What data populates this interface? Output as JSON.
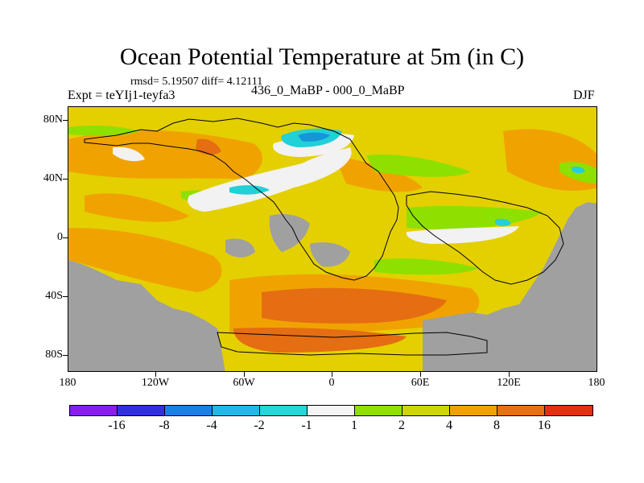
{
  "title": "Ocean Potential Temperature at 5m (in C)",
  "stats": "rmsd= 5.19507 diff= 4.12111",
  "experiment": "Expt = teYIj1-teyfa3",
  "difference": "436_0_MaBP - 000_0_MaBP",
  "season": "DJF",
  "map": {
    "lat_labels": [
      "80N",
      "40N",
      "0",
      "40S",
      "80S"
    ],
    "lon_labels": [
      "180",
      "120W",
      "60W",
      "0",
      "60E",
      "120E",
      "180"
    ],
    "colors": {
      "land": "#a0a0a0",
      "ocean_mild": "#e4d000",
      "ocean_warm": "#f0a300",
      "ocean_hot": "#e56d12",
      "green": "#8ee000",
      "white": "#f2f2f2",
      "cyan": "#22d0d8",
      "blue": "#1496d8"
    }
  },
  "colorbar": {
    "labels": [
      "-16",
      "-8",
      "-4",
      "-2",
      "-1",
      "1",
      "2",
      "4",
      "8",
      "16"
    ],
    "colors": [
      "#8a1cf0",
      "#3030e0",
      "#1a80e8",
      "#20b8e8",
      "#22d8d8",
      "#f4f4f4",
      "#90e000",
      "#cdd600",
      "#f0a300",
      "#e87010",
      "#e33010"
    ]
  }
}
